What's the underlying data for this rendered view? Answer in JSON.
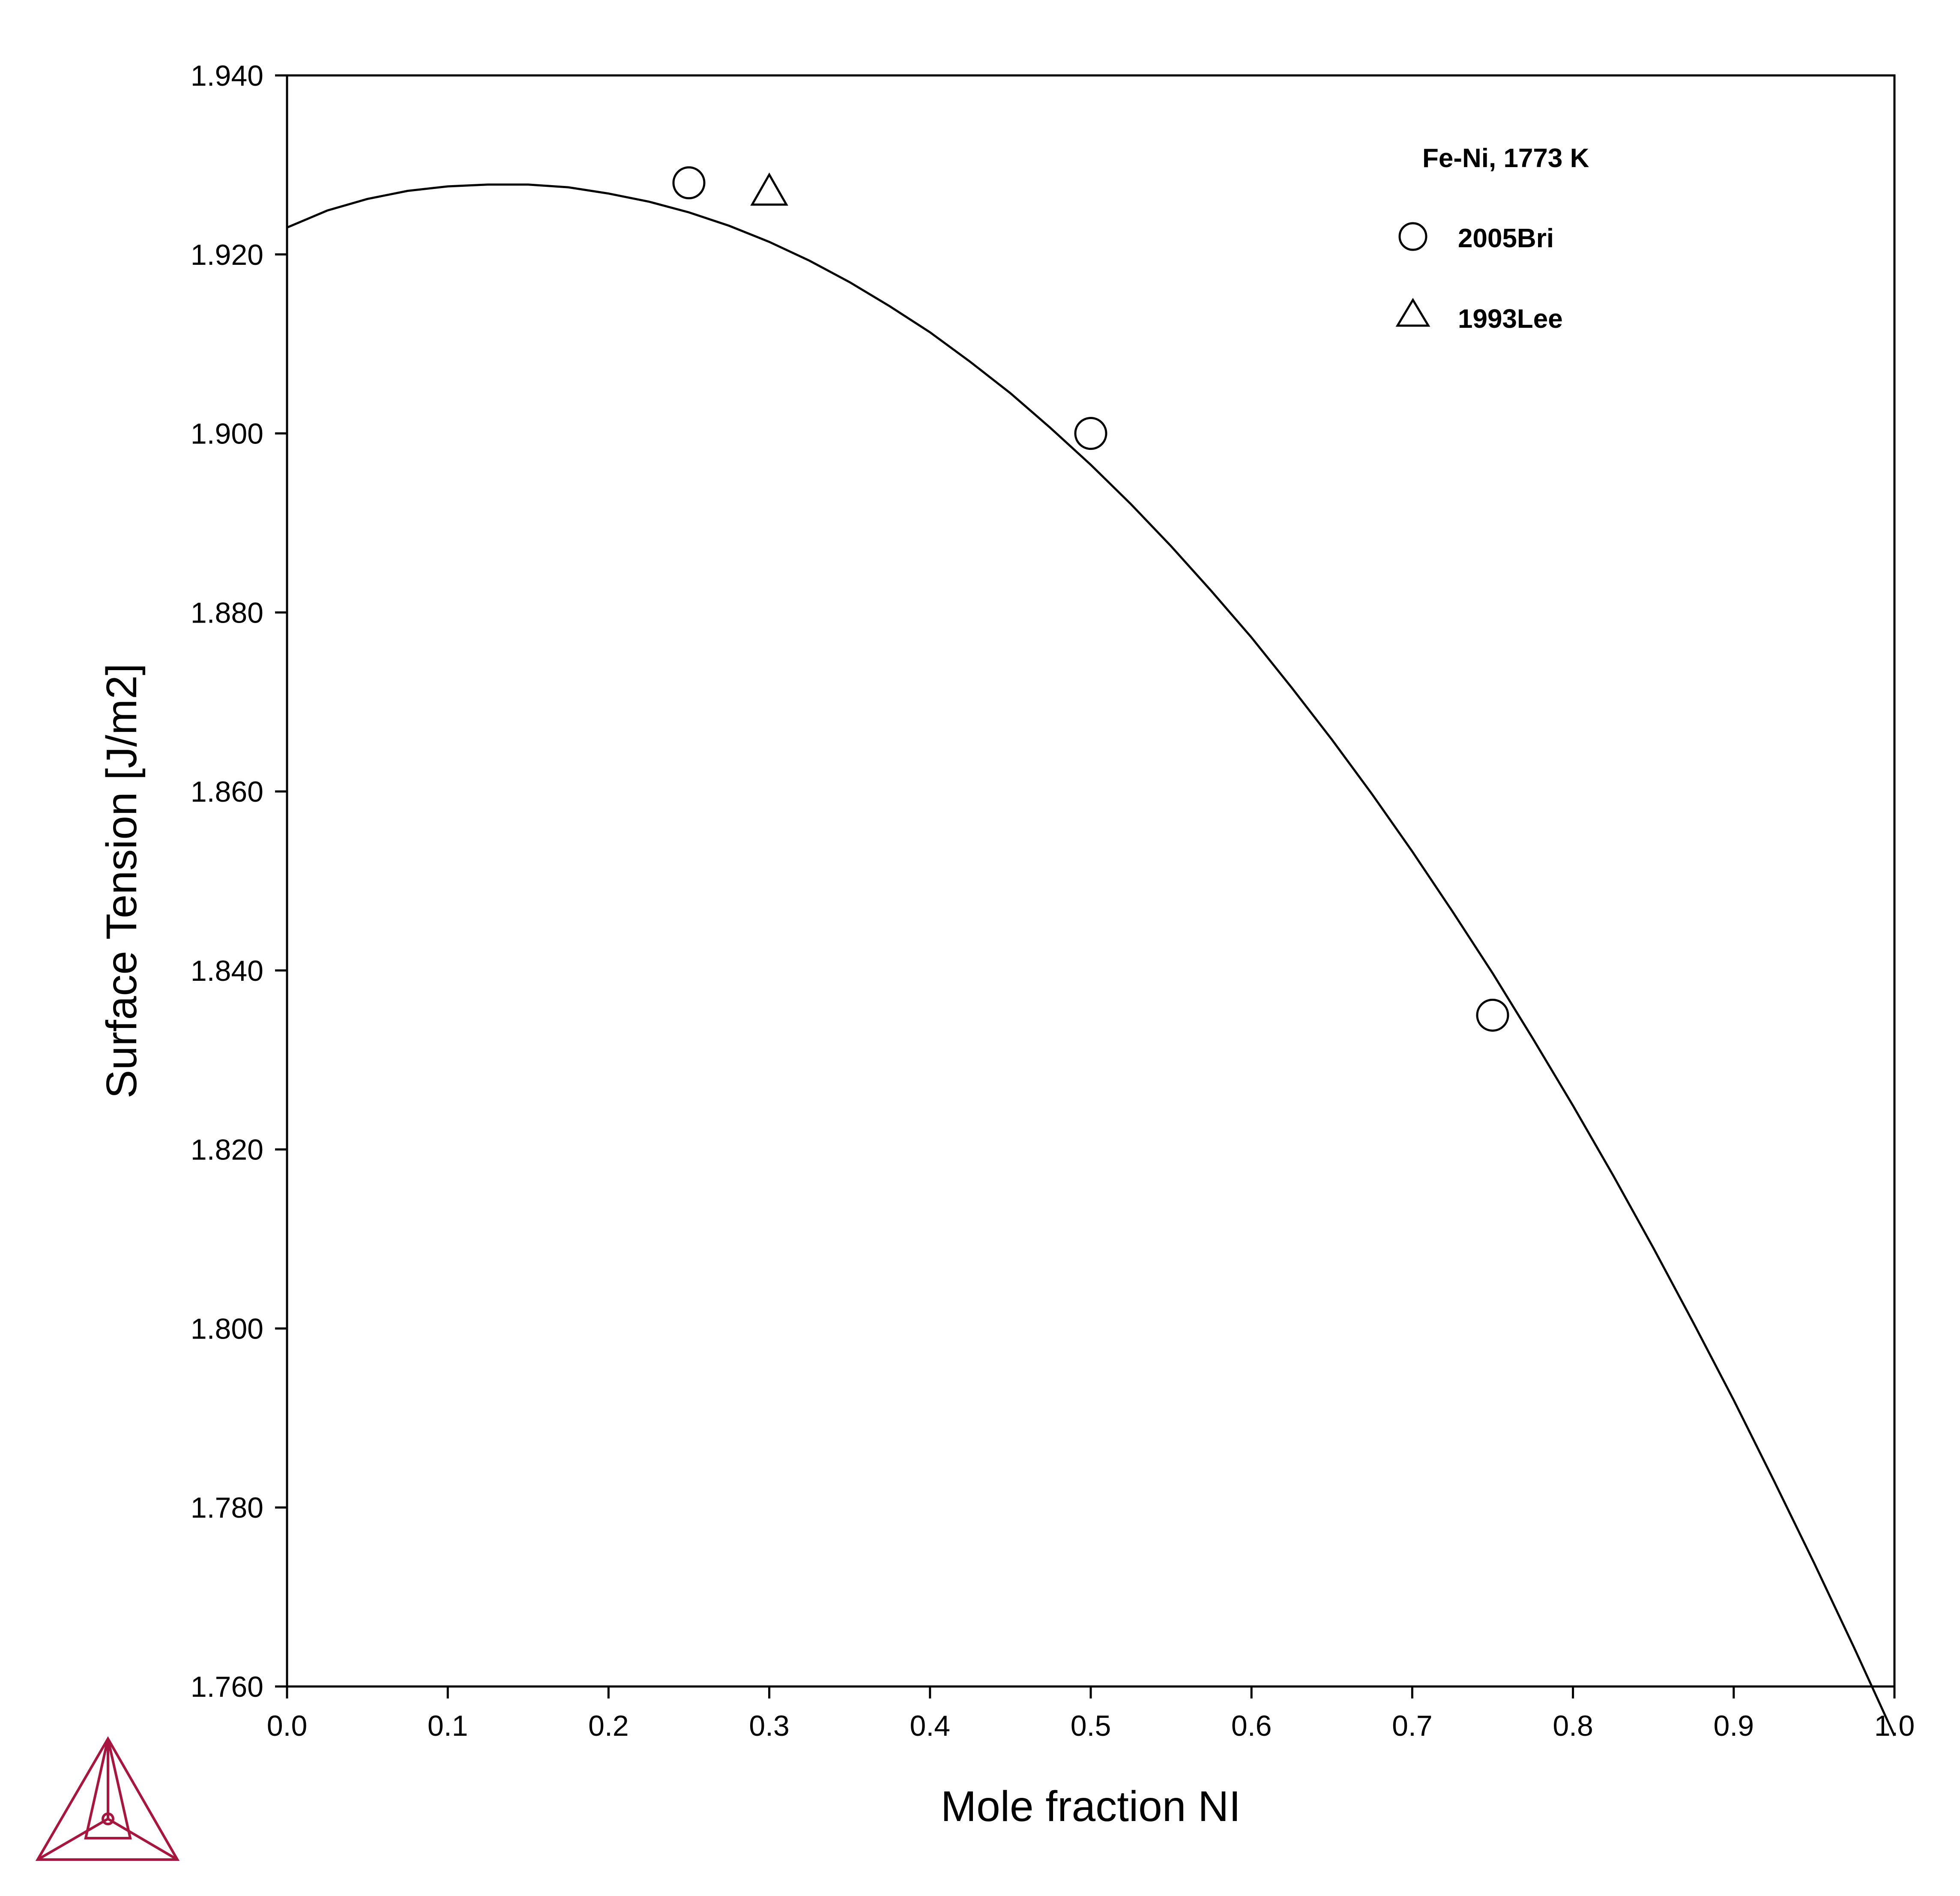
{
  "chart_data": {
    "type": "line",
    "xlabel": "Mole fraction NI",
    "ylabel": "Surface Tension [J/m2]",
    "xlim": [
      0.0,
      1.0
    ],
    "ylim": [
      1.76,
      1.94
    ],
    "x_ticks": [
      "0.0",
      "0.1",
      "0.2",
      "0.3",
      "0.4",
      "0.5",
      "0.6",
      "0.7",
      "0.8",
      "0.9",
      "1.0"
    ],
    "y_ticks": [
      "1.760",
      "1.780",
      "1.800",
      "1.820",
      "1.840",
      "1.860",
      "1.880",
      "1.900",
      "1.920",
      "1.940"
    ],
    "grid": false,
    "curve": {
      "x": [
        0.0,
        0.025,
        0.05,
        0.075,
        0.1,
        0.125,
        0.15,
        0.175,
        0.2,
        0.225,
        0.25,
        0.275,
        0.3,
        0.325,
        0.35,
        0.375,
        0.4,
        0.425,
        0.45,
        0.475,
        0.5,
        0.525,
        0.55,
        0.575,
        0.6,
        0.625,
        0.65,
        0.675,
        0.7,
        0.725,
        0.75,
        0.775,
        0.8,
        0.825,
        0.85,
        0.875,
        0.9,
        0.925,
        0.95,
        0.975,
        1.0
      ],
      "y": [
        1.923,
        1.9249,
        1.9262,
        1.9271,
        1.9276,
        1.9278,
        1.9278,
        1.9275,
        1.9268,
        1.9259,
        1.9247,
        1.9232,
        1.9214,
        1.9193,
        1.9169,
        1.9142,
        1.9113,
        1.908,
        1.9045,
        1.9006,
        1.8965,
        1.8921,
        1.8874,
        1.8824,
        1.8772,
        1.8716,
        1.8658,
        1.8597,
        1.8533,
        1.8466,
        1.8397,
        1.8324,
        1.8249,
        1.8171,
        1.809,
        1.8006,
        1.792,
        1.783,
        1.7738,
        1.7643,
        1.7545
      ]
    },
    "legend": {
      "title": "Fe-Ni, 1773 K",
      "placement": "top-right",
      "entries": [
        {
          "label": "2005Bri",
          "marker": "circle"
        },
        {
          "label": "1993Lee",
          "marker": "triangle"
        }
      ]
    },
    "series": [
      {
        "name": "2005Bri",
        "marker": "circle",
        "x": [
          0.25,
          0.5,
          0.75
        ],
        "y": [
          1.928,
          1.9,
          1.835
        ]
      },
      {
        "name": "1993Lee",
        "marker": "triangle",
        "x": [
          0.3
        ],
        "y": [
          1.927
        ]
      }
    ]
  },
  "logo": {
    "name": "thermo-calc-logo-icon",
    "color": "#a5173f"
  }
}
